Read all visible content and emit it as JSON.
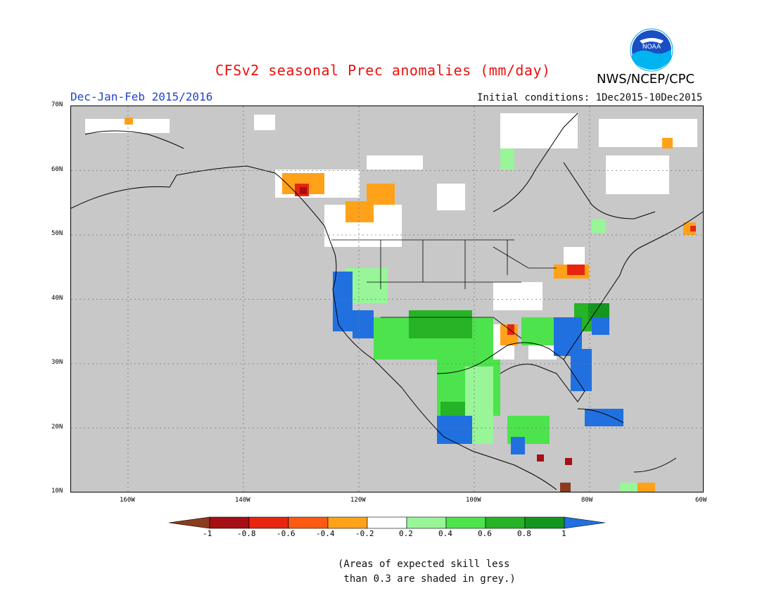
{
  "header": {
    "title": "CFSv2 seasonal Prec anomalies (mm/day)",
    "period": "Dec-Jan-Feb 2015/2016",
    "initial_conditions": "Initial conditions: 1Dec2015-10Dec2015",
    "agency": "NWS/NCEP/CPC",
    "logo_text": "NOAA"
  },
  "map": {
    "lat_labels": [
      "70N",
      "60N",
      "50N",
      "40N",
      "30N",
      "20N",
      "10N"
    ],
    "lon_labels": [
      "160W",
      "140W",
      "120W",
      "100W",
      "80W",
      "60W"
    ],
    "background_color": "#c8c8c8"
  },
  "colorbar": {
    "ticks": [
      "-1",
      "-0.8",
      "-0.6",
      "-0.4",
      "-0.2",
      "0.2",
      "0.4",
      "0.6",
      "0.8",
      "1"
    ],
    "colors": [
      "#8c3c1e",
      "#a50f15",
      "#e8250f",
      "#ff5a12",
      "#ffa21a",
      "#ffffff",
      "#98f598",
      "#4de34d",
      "#26b326",
      "#14961e",
      "#2170e0"
    ]
  },
  "footnote": "(Areas of expected skill less\n than 0.3 are shaded in grey.)"
}
